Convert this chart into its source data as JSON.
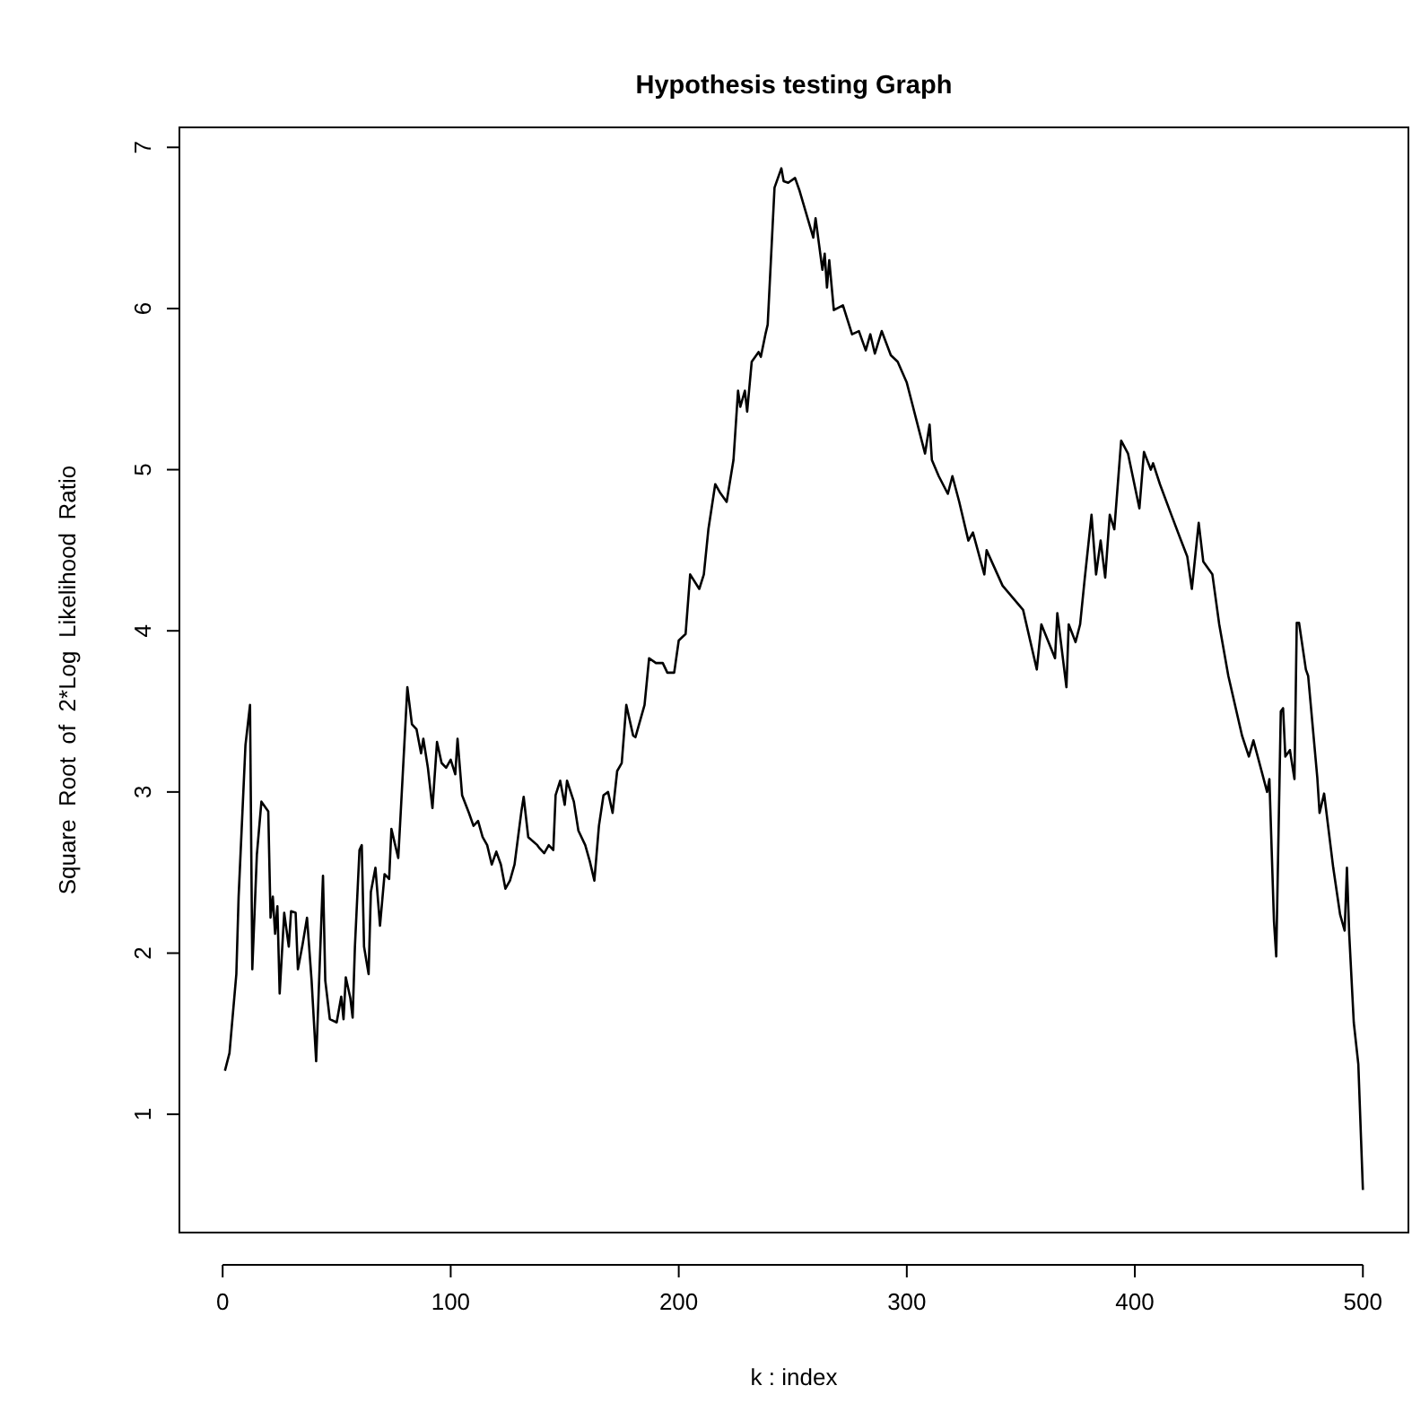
{
  "chart_data": {
    "type": "line",
    "title": "Hypothesis testing Graph",
    "xlabel": "k : index",
    "ylabel": "Square  Root  of  2*Log  Likelihood  Ratio",
    "xlim": [
      -18.96,
      519.96
    ],
    "ylim": [
      0.266,
      7.124
    ],
    "xticks": [
      0,
      100,
      200,
      300,
      400,
      500
    ],
    "yticks": [
      1,
      2,
      3,
      4,
      5,
      6,
      7
    ],
    "grid": false,
    "series": [
      {
        "color": "#000000",
        "x": [
          1,
          3,
          6,
          7,
          10,
          12,
          13,
          15,
          17,
          20,
          21,
          22,
          23,
          24,
          25,
          27,
          29,
          30,
          32,
          33,
          35,
          37,
          39,
          41,
          44,
          45,
          47,
          50,
          52,
          53,
          54,
          56,
          57,
          58,
          60,
          61,
          62,
          64,
          65,
          67,
          69,
          71,
          73,
          74,
          77,
          78,
          81,
          83,
          85,
          87,
          88,
          90,
          92,
          94,
          96,
          98,
          100,
          102,
          103,
          105,
          108,
          110,
          112,
          114,
          116,
          118,
          120,
          122,
          124,
          126,
          128,
          131,
          132,
          134,
          138,
          139,
          141,
          143,
          145,
          146,
          148,
          150,
          151,
          154,
          156,
          159,
          161,
          163,
          165,
          167,
          169,
          171,
          173,
          175,
          177,
          180,
          181,
          185,
          187,
          190,
          193,
          195,
          198,
          200,
          203,
          205,
          209,
          211,
          213,
          216,
          218,
          221,
          224,
          226,
          227,
          229,
          230,
          232,
          235,
          236,
          238,
          239,
          242,
          245,
          246,
          248,
          251,
          253,
          259,
          260,
          263,
          264,
          265,
          266,
          268,
          272,
          276,
          279,
          282,
          284,
          286,
          289,
          293,
          296,
          300,
          304,
          308,
          310,
          311,
          314,
          318,
          320,
          323,
          327,
          329,
          334,
          335,
          342,
          351,
          357,
          359,
          365,
          366,
          370,
          371,
          374,
          376,
          378,
          381,
          383,
          385,
          387,
          389,
          391,
          394,
          397,
          402,
          404,
          407,
          408,
          411,
          416,
          420,
          423,
          425,
          428,
          430,
          434,
          437,
          441,
          447,
          450,
          452,
          458,
          459,
          461,
          462,
          464,
          465,
          466,
          468,
          470,
          471,
          472,
          475,
          476,
          480,
          481,
          483,
          487,
          490,
          492,
          493,
          494,
          496,
          498,
          500
        ],
        "values": [
          1.27,
          1.38,
          1.87,
          2.35,
          3.29,
          3.54,
          1.9,
          2.61,
          2.94,
          2.88,
          2.22,
          2.35,
          2.12,
          2.29,
          1.75,
          2.25,
          2.04,
          2.26,
          2.25,
          1.9,
          2.05,
          2.22,
          1.83,
          1.33,
          2.48,
          1.83,
          1.59,
          1.57,
          1.73,
          1.59,
          1.85,
          1.72,
          1.6,
          2.04,
          2.64,
          2.67,
          2.04,
          1.87,
          2.38,
          2.53,
          2.17,
          2.49,
          2.46,
          2.77,
          2.59,
          2.85,
          3.65,
          3.42,
          3.39,
          3.24,
          3.33,
          3.15,
          2.9,
          3.31,
          3.18,
          3.15,
          3.2,
          3.11,
          3.33,
          2.98,
          2.87,
          2.79,
          2.82,
          2.72,
          2.67,
          2.55,
          2.63,
          2.55,
          2.4,
          2.45,
          2.55,
          2.88,
          2.97,
          2.72,
          2.67,
          2.65,
          2.62,
          2.67,
          2.64,
          2.98,
          3.07,
          2.92,
          3.07,
          2.94,
          2.76,
          2.67,
          2.57,
          2.45,
          2.79,
          2.98,
          3.0,
          2.87,
          3.13,
          3.18,
          3.54,
          3.35,
          3.34,
          3.54,
          3.83,
          3.8,
          3.8,
          3.74,
          3.74,
          3.94,
          3.98,
          4.35,
          4.26,
          4.35,
          4.63,
          4.91,
          4.86,
          4.8,
          5.06,
          5.49,
          5.39,
          5.49,
          5.36,
          5.67,
          5.73,
          5.7,
          5.84,
          5.9,
          6.75,
          6.87,
          6.79,
          6.78,
          6.81,
          6.73,
          6.44,
          6.56,
          6.24,
          6.34,
          6.13,
          6.3,
          5.99,
          6.02,
          5.84,
          5.86,
          5.74,
          5.84,
          5.72,
          5.86,
          5.71,
          5.67,
          5.54,
          5.32,
          5.1,
          5.28,
          5.06,
          4.96,
          4.85,
          4.96,
          4.8,
          4.56,
          4.61,
          4.35,
          4.5,
          4.28,
          4.13,
          3.76,
          4.04,
          3.83,
          4.11,
          3.65,
          4.04,
          3.93,
          4.04,
          4.32,
          4.72,
          4.35,
          4.56,
          4.33,
          4.72,
          4.63,
          5.18,
          5.1,
          4.76,
          5.11,
          5.0,
          5.04,
          4.91,
          4.72,
          4.57,
          4.46,
          4.26,
          4.67,
          4.43,
          4.35,
          4.04,
          3.72,
          3.35,
          3.22,
          3.32,
          3.0,
          3.08,
          2.2,
          1.98,
          3.5,
          3.52,
          3.22,
          3.26,
          3.08,
          4.05,
          4.05,
          3.76,
          3.72,
          3.09,
          2.87,
          2.99,
          2.53,
          2.24,
          2.14,
          2.53,
          2.12,
          1.57,
          1.31,
          0.53
        ]
      }
    ]
  }
}
